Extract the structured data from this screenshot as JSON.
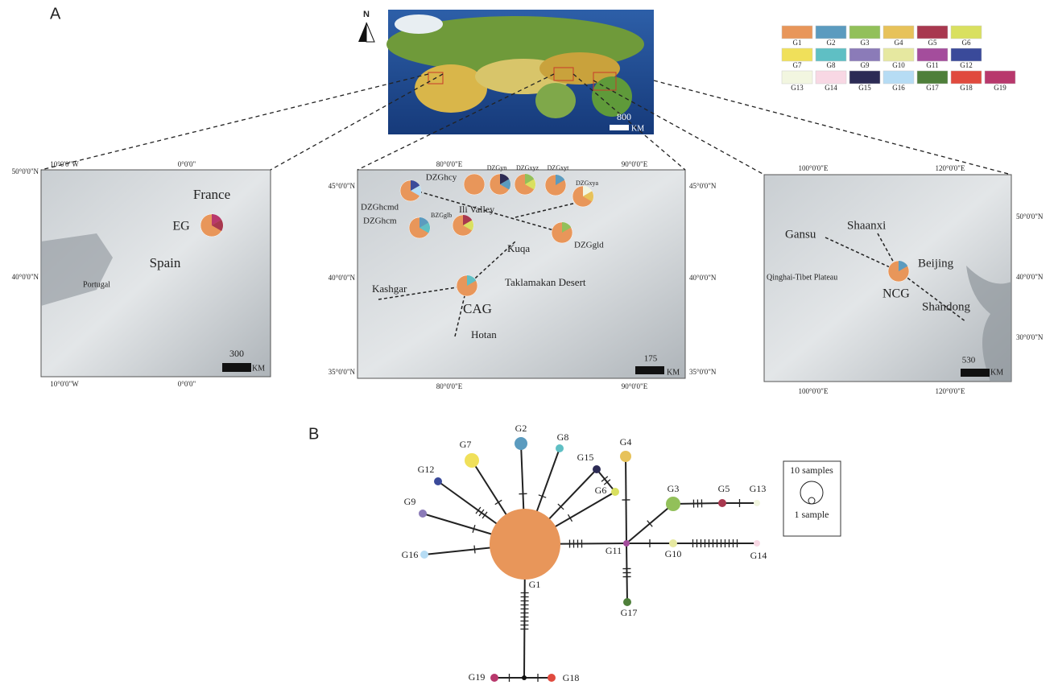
{
  "panel_a": {
    "label": "A",
    "north": "N",
    "world_scale": [
      "800",
      "KM"
    ],
    "legend": [
      {
        "label": "G1",
        "color": "#e8965a"
      },
      {
        "label": "G2",
        "color": "#5b9bbf"
      },
      {
        "label": "G3",
        "color": "#92c05a"
      },
      {
        "label": "G4",
        "color": "#e7c25a"
      },
      {
        "label": "G5",
        "color": "#a8384f"
      },
      {
        "label": "G6",
        "color": "#d9e060"
      },
      {
        "label": "G7",
        "color": "#f0e05a"
      },
      {
        "label": "G8",
        "color": "#5fbfc4"
      },
      {
        "label": "G9",
        "color": "#8b7bb8"
      },
      {
        "label": "G10",
        "color": "#e6e8a0"
      },
      {
        "label": "G11",
        "color": "#a44d9c"
      },
      {
        "label": "G12",
        "color": "#3a4a9a"
      },
      {
        "label": "G13",
        "color": "#f2f6e0"
      },
      {
        "label": "G14",
        "color": "#f8d8e4"
      },
      {
        "label": "G15",
        "color": "#2c2b55"
      },
      {
        "label": "G16",
        "color": "#b6dcf4"
      },
      {
        "label": "G17",
        "color": "#4e7f3a"
      },
      {
        "label": "G18",
        "color": "#e04a3e"
      },
      {
        "label": "G19",
        "color": "#b8386c"
      }
    ],
    "europe": [
      "50°0'0\"N",
      "10°0'0\"W",
      "0°0'0\"",
      "France",
      "EG",
      "Spain",
      "40°0'0\"N",
      "Portugal",
      "300",
      "KM",
      "10°0'0\"W",
      "0°0'0\""
    ],
    "xinjiang": [
      "45°0'0\"N",
      "45°0'0\"N",
      "80°0'0\"E",
      "90°0'0\"E",
      "40°0'0\"N",
      "40°0'0\"N",
      "35°0'0\"N",
      "35°0'0\"N",
      "80°0'0\"E",
      "90°0'0\"E",
      "DZGhcy",
      "DZGyn",
      "DZGxyz",
      "DZGxyt",
      "DZGxya",
      "DZGhcmd",
      "DZGhcm",
      "BZGglb",
      "Ili Valley",
      "DZGgld",
      "Kuqa",
      "Kashgar",
      "Taklamakan Desert",
      "CAG",
      "Hotan",
      "175",
      "KM"
    ],
    "china": [
      "100°0'0\"E",
      "120°0'0\"E",
      "50°0'0\"N",
      "40°0'0\"N",
      "30°0'0\"N",
      "Gansu",
      "Shaanxi",
      "Beijing",
      "Qinghai-Tibet Plateau",
      "NCG",
      "Shandong",
      "530",
      "KM",
      "100°0'0\"E",
      "120°0'0\"E"
    ]
  },
  "panel_b": {
    "label": "B",
    "nodes": [
      "G1",
      "G2",
      "G3",
      "G4",
      "G5",
      "G6",
      "G7",
      "G8",
      "G9",
      "G10",
      "G11",
      "G12",
      "G13",
      "G14",
      "G15",
      "G16",
      "G17",
      "G18",
      "G19"
    ],
    "size_key": [
      "10 samples",
      "1 sample"
    ]
  }
}
